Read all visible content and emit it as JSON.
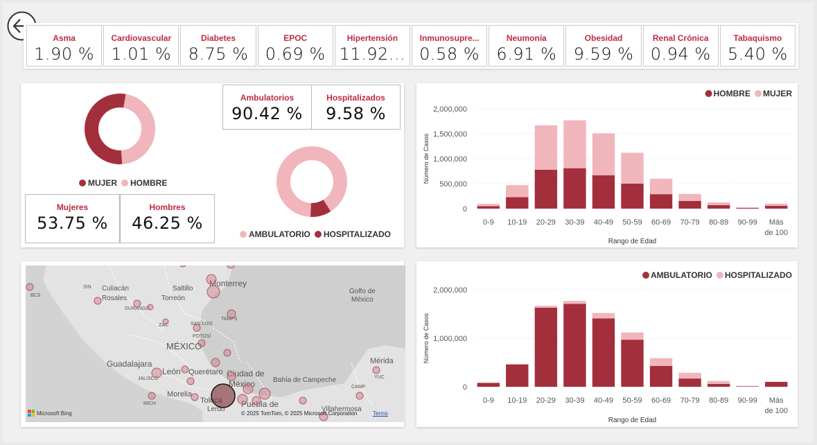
{
  "kpis": [
    {
      "label": "Asma",
      "value": "1.90 %"
    },
    {
      "label": "Cardiovascular",
      "value": "1.01 %"
    },
    {
      "label": "Diabetes",
      "value": "8.75 %"
    },
    {
      "label": "EPOC",
      "value": "0.69 %"
    },
    {
      "label": "Hipertensión",
      "value": "11.92..."
    },
    {
      "label": "Inmunosupre...",
      "value": "0.58 %"
    },
    {
      "label": "Neumonía",
      "value": "6.91 %"
    },
    {
      "label": "Obesidad",
      "value": "9.59 %"
    },
    {
      "label": "Renal Crónica",
      "value": "0.94 %"
    },
    {
      "label": "Tabaquismo",
      "value": "5.40 %"
    }
  ],
  "gender": {
    "legend_mujer": "MUJER",
    "legend_hombre": "HOMBRE",
    "mujeres_label": "Mujeres",
    "mujeres_value": "53.75 %",
    "hombres_label": "Hombres",
    "hombres_value": "46.25 %",
    "mujer_fraction": 0.5375
  },
  "care": {
    "ambulatorios_label": "Ambulatorios",
    "ambulatorios_value": "90.42 %",
    "hospitalizados_label": "Hospitalizados",
    "hospitalizados_value": "9.58 %",
    "legend_ambulatorio": "AMBULATORIO",
    "legend_hospitalizado": "HOSPITALIZADO",
    "hospitalizado_fraction": 0.0958
  },
  "colors": {
    "dark": "#a42f3c",
    "light": "#f0b6bc",
    "accent_text": "#c0293f"
  },
  "map": {
    "labels": [
      "Monterrey",
      "Saltillo",
      "Torreón",
      "Culiacán",
      "Rosales",
      "SIN",
      "BCS",
      "DURANGO",
      "ZAC",
      "SAN LUIS",
      "POTOSÍ",
      "TAMPS",
      "MÉXICO",
      "Guadalajara",
      "León",
      "JALISCO",
      "Querétaro",
      "Morelia",
      "MICH",
      "Ciudad de",
      "México",
      "Toluca",
      "Lerdo",
      "Puebla de",
      "Golfo de",
      "México",
      "Bahía de Campeche",
      "Mérida",
      "YUC",
      "CAMP",
      "Villahermosa"
    ],
    "copyright": "© 2025 TomTom, © 2025 Microsoft Corporation",
    "terms": "Terms",
    "provider": "Microsoft Bing"
  },
  "chart_data": [
    {
      "type": "bar",
      "stacked": true,
      "title": "",
      "xlabel": "Rango de Edad",
      "ylabel": "Número de Casos",
      "categories": [
        "0-9",
        "10-19",
        "20-29",
        "30-39",
        "40-49",
        "50-59",
        "60-69",
        "70-79",
        "80-89",
        "90-99",
        "Más de 100"
      ],
      "ylim": [
        0,
        2000000
      ],
      "yticks": [
        "0",
        "500,000",
        "1,000,000",
        "1,500,000",
        "2,000,000"
      ],
      "legend_position": "top-right",
      "series": [
        {
          "name": "HOMBRE",
          "color": "#a42f3c",
          "values": [
            50000,
            230000,
            780000,
            810000,
            670000,
            500000,
            290000,
            155000,
            70000,
            15000,
            55000
          ]
        },
        {
          "name": "MUJER",
          "color": "#f0b6bc",
          "values": [
            45000,
            240000,
            890000,
            960000,
            840000,
            620000,
            310000,
            140000,
            55000,
            10000,
            45000
          ]
        }
      ]
    },
    {
      "type": "bar",
      "stacked": true,
      "title": "",
      "xlabel": "Rango de Edad",
      "ylabel": "Número de Casos",
      "categories": [
        "0-9",
        "10-19",
        "20-29",
        "30-39",
        "40-49",
        "50-59",
        "60-69",
        "70-79",
        "80-89",
        "90-99",
        "Más de 100"
      ],
      "ylim": [
        0,
        2000000
      ],
      "yticks": [
        "0",
        "1,000,000",
        "2,000,000"
      ],
      "legend_position": "top-right",
      "series": [
        {
          "name": "AMBULATORIO",
          "color": "#a42f3c",
          "values": [
            80000,
            460000,
            1630000,
            1710000,
            1410000,
            970000,
            430000,
            170000,
            60000,
            10000,
            100000
          ]
        },
        {
          "name": "HOSPITALIZADO",
          "color": "#f0b6bc",
          "values": [
            5000,
            10000,
            40000,
            60000,
            110000,
            150000,
            160000,
            120000,
            60000,
            10000,
            5000
          ]
        }
      ]
    }
  ]
}
